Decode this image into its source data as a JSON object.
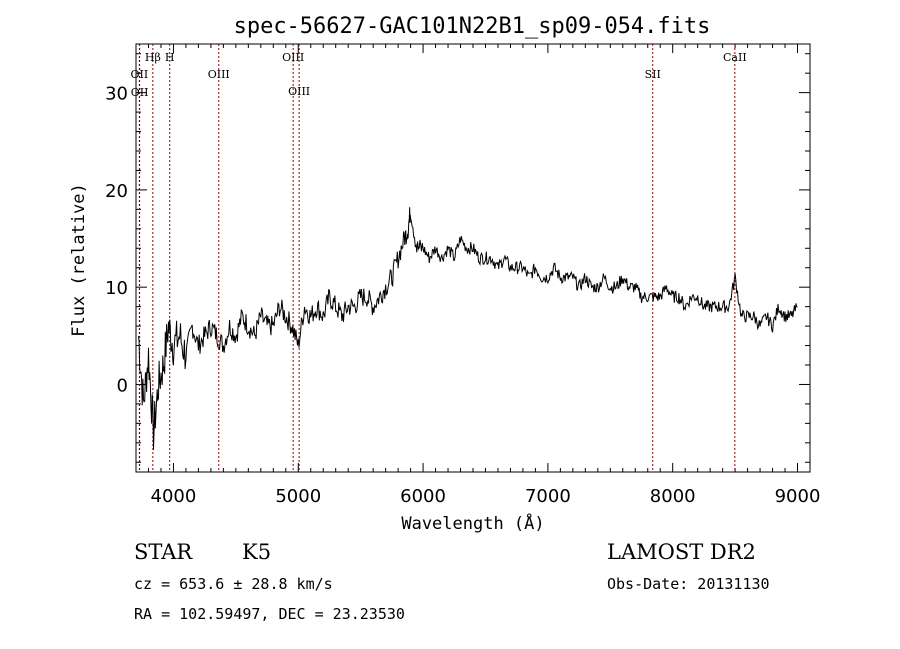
{
  "chart_data": {
    "type": "line",
    "title": "spec-56627-GAC101N22B1_sp09-054.fits",
    "xlabel": "Wavelength (Å)",
    "ylabel": "Flux (relative)",
    "xlim": [
      3700,
      9100
    ],
    "ylim": [
      -9,
      35
    ],
    "x_ticks": [
      4000,
      5000,
      6000,
      7000,
      8000,
      9000
    ],
    "y_ticks": [
      0,
      10,
      20,
      30
    ],
    "grid": false,
    "series_color": "#000000",
    "line_marker_color": "#990000",
    "series": [
      {
        "x": [
          3720,
          3760,
          3800,
          3840,
          3880,
          3920,
          3960,
          4000,
          4050,
          4100,
          4150,
          4200,
          4250,
          4300,
          4350,
          4400,
          4450,
          4500,
          4550,
          4600,
          4650,
          4700,
          4750,
          4800,
          4850,
          4900,
          4950,
          5000,
          5050,
          5100,
          5150,
          5200,
          5250,
          5300,
          5350,
          5400,
          5450,
          5500,
          5550,
          5600,
          5650,
          5700,
          5750,
          5800,
          5850,
          5880,
          5900,
          5950,
          6000,
          6050,
          6100,
          6150,
          6200,
          6250,
          6300,
          6350,
          6400,
          6450,
          6500,
          6550,
          6600,
          6650,
          6700,
          6750,
          6800,
          6850,
          6900,
          6950,
          7000,
          7050,
          7100,
          7150,
          7200,
          7250,
          7300,
          7350,
          7400,
          7450,
          7500,
          7550,
          7600,
          7650,
          7700,
          7750,
          7800,
          7850,
          7900,
          7950,
          8000,
          8050,
          8100,
          8150,
          8200,
          8250,
          8300,
          8350,
          8400,
          8450,
          8500,
          8550,
          8600,
          8650,
          8700,
          8750,
          8800,
          8850,
          8900,
          8950,
          9000
        ],
        "y": [
          5,
          -2,
          3,
          -5,
          0,
          2,
          6,
          4,
          5,
          3,
          6,
          4,
          5,
          6,
          5,
          4,
          6,
          5,
          7,
          6,
          5,
          7,
          6,
          6,
          8,
          7,
          6,
          4,
          8,
          7,
          8,
          7,
          9,
          8,
          7,
          8,
          8,
          9,
          9,
          8,
          9,
          10,
          11,
          13,
          15,
          16,
          18,
          14,
          14,
          13,
          14,
          13,
          14,
          13,
          15,
          14,
          14,
          13,
          13,
          13,
          12,
          13,
          12,
          12,
          12,
          11,
          12,
          11,
          11,
          12,
          11,
          11,
          11,
          10,
          11,
          10,
          10,
          11,
          10,
          10,
          11,
          10,
          10,
          9,
          9,
          9,
          9,
          10,
          9,
          9,
          8,
          9,
          9,
          8,
          8,
          8,
          8,
          8,
          11,
          7,
          7,
          7,
          6,
          7,
          6,
          8,
          7,
          7,
          8
        ]
      }
    ],
    "spectral_lines": [
      {
        "label": "Hβ",
        "x": 3835
      },
      {
        "label": "OII",
        "x": 3727
      },
      {
        "label": "OII",
        "x": 3729
      },
      {
        "label": "H",
        "x": 3970
      },
      {
        "label": "OIII",
        "x": 4363
      },
      {
        "label": "OIII",
        "x": 4959
      },
      {
        "label": "OIII",
        "x": 5007
      },
      {
        "label": "SII",
        "x": 7840
      },
      {
        "label": "CaII",
        "x": 8498
      }
    ]
  },
  "info": {
    "object_class": "STAR",
    "subclass": "K5",
    "survey": "LAMOST DR2",
    "redshift": "cz = 653.6 ± 28.8 km/s",
    "obs_date": "Obs-Date: 20131130",
    "coords": "RA = 102.59497, DEC =  23.23530"
  }
}
